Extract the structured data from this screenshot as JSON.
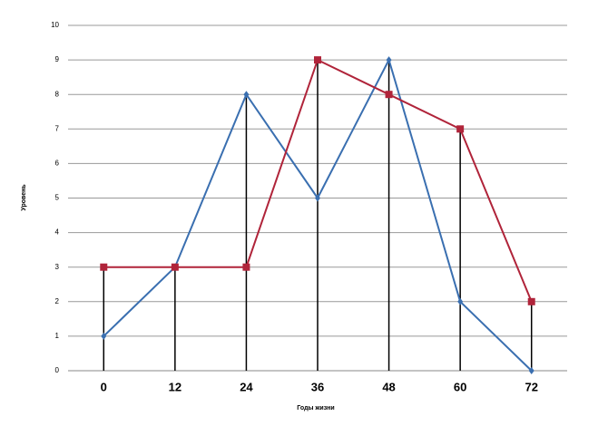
{
  "chart_data": {
    "type": "line",
    "x_label": "Годы жизни",
    "y_label": "Уровень",
    "categories": [
      "0",
      "12",
      "24",
      "36",
      "48",
      "60",
      "72"
    ],
    "series": [
      {
        "color": "#3a6fb0",
        "values": [
          1,
          3,
          8,
          5,
          9,
          2,
          0
        ]
      },
      {
        "color": "#b0243a",
        "values": [
          3,
          3,
          3,
          9,
          8,
          7,
          2
        ]
      }
    ],
    "ylim": [
      0,
      10
    ],
    "yticks": [
      0,
      1,
      2,
      3,
      4,
      5,
      6,
      7,
      8,
      9,
      10
    ],
    "grid": true,
    "drop_lines": true
  }
}
